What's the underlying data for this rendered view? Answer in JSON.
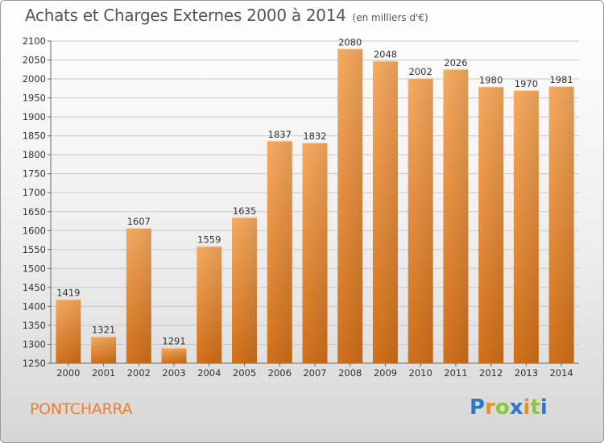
{
  "title": "Achats et Charges Externes 2000 à 2014",
  "unit": "(en milliers d'€)",
  "place": "PONTCHARRA",
  "logo": {
    "p": "P",
    "r": "r",
    "o": "o",
    "x": "x",
    "i": "i",
    "t": "t",
    "i2": "i"
  },
  "colors": {
    "bar_light": "#f5a65a",
    "bar_dark": "#d7731a",
    "place": "#f07c2c"
  },
  "chart_data": {
    "type": "bar",
    "title": "Achats et Charges Externes 2000 à 2014",
    "xlabel": "",
    "ylabel": "",
    "categories": [
      "2000",
      "2001",
      "2002",
      "2003",
      "2004",
      "2005",
      "2006",
      "2007",
      "2008",
      "2009",
      "2010",
      "2011",
      "2012",
      "2013",
      "2014"
    ],
    "values": [
      1419,
      1321,
      1607,
      1291,
      1559,
      1635,
      1837,
      1832,
      2080,
      2048,
      2002,
      2026,
      1980,
      1970,
      1981
    ],
    "ylim": [
      1250,
      2100
    ],
    "yticks": [
      1250,
      1300,
      1350,
      1400,
      1450,
      1500,
      1550,
      1600,
      1650,
      1700,
      1750,
      1800,
      1850,
      1900,
      1950,
      2000,
      2050,
      2100
    ],
    "grid": true
  }
}
